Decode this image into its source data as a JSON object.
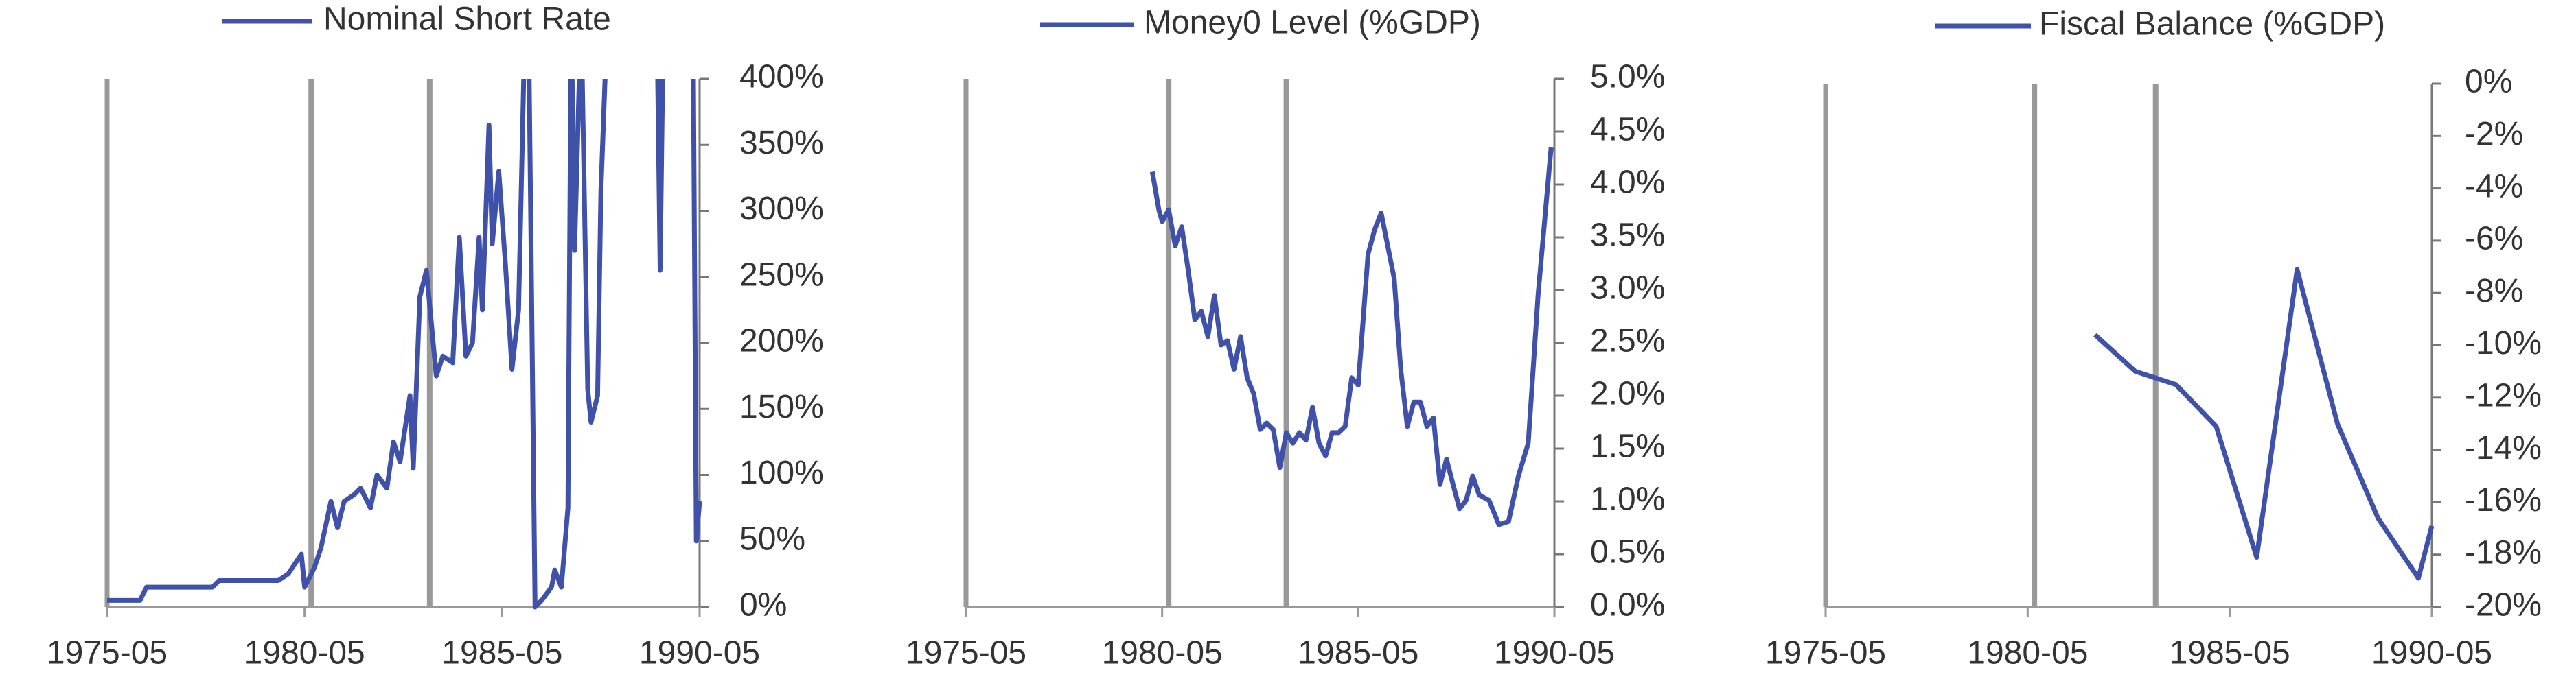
{
  "chart_data": [
    {
      "type": "line",
      "x": [
        "1975-05",
        "1976-03",
        "1976-05",
        "1978-01",
        "1978-03",
        "1979-09",
        "1979-12",
        "1980-04",
        "1980-05",
        "1980-08",
        "1980-10",
        "1981-01",
        "1981-03",
        "1981-05",
        "1981-08",
        "1981-10",
        "1982-01",
        "1982-03",
        "1982-06",
        "1982-08",
        "1982-10",
        "1983-01",
        "1983-02",
        "1983-04",
        "1983-06",
        "1983-09",
        "1983-11",
        "1984-02",
        "1984-04",
        "1984-06",
        "1984-08",
        "1984-10",
        "1984-11",
        "1985-01",
        "1985-02",
        "1985-04",
        "1985-06",
        "1985-08",
        "1985-10",
        "1985-12",
        "1986-01",
        "1986-03",
        "1986-05",
        "1986-08",
        "1986-09",
        "1986-11",
        "1987-01",
        "1987-02",
        "1987-03",
        "1987-05",
        "1987-07",
        "1987-08",
        "1987-10",
        "1987-11",
        "1988-01",
        "1989-04",
        "1989-05",
        "1989-06",
        "1990-03",
        "1990-04",
        "1990-05"
      ],
      "series": [
        {
          "name": "Nominal Short Rate",
          "color": "#3f51a8",
          "values": [
            5,
            5,
            15,
            15,
            20,
            20,
            25,
            40,
            15,
            30,
            45,
            80,
            60,
            80,
            85,
            90,
            75,
            100,
            90,
            125,
            110,
            160,
            105,
            235,
            255,
            175,
            190,
            185,
            280,
            190,
            200,
            280,
            225,
            365,
            275,
            330,
            260,
            180,
            225,
            450,
            450,
            0,
            5,
            15,
            28,
            15,
            75,
            450,
            270,
            450,
            165,
            140,
            160,
            315,
            450,
            450,
            255,
            450,
            450,
            50,
            80
          ]
        }
      ],
      "xlim": [
        "1975-05",
        "1990-05"
      ],
      "xticks": [
        "1975-05",
        "1980-05",
        "1985-05",
        "1990-05"
      ],
      "ylim": [
        0,
        400
      ],
      "yticks": [
        {
          "value": 0,
          "label": "0%"
        },
        {
          "value": 50,
          "label": "50%"
        },
        {
          "value": 100,
          "label": "100%"
        },
        {
          "value": 150,
          "label": "150%"
        },
        {
          "value": 200,
          "label": "200%"
        },
        {
          "value": 250,
          "label": "250%"
        },
        {
          "value": 300,
          "label": "300%"
        },
        {
          "value": 350,
          "label": "350%"
        },
        {
          "value": 400,
          "label": "400%"
        }
      ],
      "vlines": [
        "1980-07",
        "1983-07"
      ]
    },
    {
      "type": "line",
      "x": [
        "1980-02",
        "1980-04",
        "1980-05",
        "1980-07",
        "1980-09",
        "1980-11",
        "1981-01",
        "1981-03",
        "1981-05",
        "1981-07",
        "1981-09",
        "1981-11",
        "1982-01",
        "1982-03",
        "1982-05",
        "1982-07",
        "1982-09",
        "1982-11",
        "1983-01",
        "1983-03",
        "1983-05",
        "1983-07",
        "1983-09",
        "1983-11",
        "1984-01",
        "1984-03",
        "1984-05",
        "1984-07",
        "1984-09",
        "1984-11",
        "1985-01",
        "1985-03",
        "1985-05",
        "1985-08",
        "1985-10",
        "1985-12",
        "1986-02",
        "1986-04",
        "1986-06",
        "1986-08",
        "1986-10",
        "1986-12",
        "1987-02",
        "1987-04",
        "1987-06",
        "1987-08",
        "1987-10",
        "1987-12",
        "1988-02",
        "1988-04",
        "1988-06",
        "1988-09",
        "1988-12",
        "1989-03",
        "1989-06",
        "1989-09",
        "1989-12",
        "1990-04"
      ],
      "series": [
        {
          "name": "Money0 Level (%GDP)",
          "color": "#3f51a8",
          "values": [
            4.12,
            3.76,
            3.65,
            3.76,
            3.42,
            3.6,
            3.18,
            2.72,
            2.8,
            2.56,
            2.95,
            2.48,
            2.52,
            2.25,
            2.56,
            2.17,
            2.02,
            1.68,
            1.74,
            1.68,
            1.32,
            1.65,
            1.55,
            1.65,
            1.58,
            1.89,
            1.55,
            1.43,
            1.65,
            1.65,
            1.71,
            2.17,
            2.1,
            3.34,
            3.57,
            3.73,
            3.42,
            3.11,
            2.25,
            1.71,
            1.94,
            1.94,
            1.71,
            1.79,
            1.16,
            1.4,
            1.16,
            0.93,
            1.01,
            1.24,
            1.06,
            1.01,
            0.78,
            0.81,
            1.24,
            1.55,
            2.95,
            4.35
          ]
        }
      ],
      "xlim": [
        "1975-05",
        "1990-05"
      ],
      "xticks": [
        "1975-05",
        "1980-05",
        "1985-05",
        "1990-05"
      ],
      "ylim": [
        0,
        5
      ],
      "yticks": [
        {
          "value": 0,
          "label": "0.0%"
        },
        {
          "value": 0.5,
          "label": "0.5%"
        },
        {
          "value": 1,
          "label": "1.0%"
        },
        {
          "value": 1.5,
          "label": "1.5%"
        },
        {
          "value": 2,
          "label": "2.0%"
        },
        {
          "value": 2.5,
          "label": "2.5%"
        },
        {
          "value": 3,
          "label": "3.0%"
        },
        {
          "value": 3.5,
          "label": "3.5%"
        },
        {
          "value": 4,
          "label": "4.0%"
        },
        {
          "value": 4.5,
          "label": "4.5%"
        },
        {
          "value": 5,
          "label": "5.0%"
        }
      ],
      "vlines": [
        "1980-07",
        "1983-07"
      ]
    },
    {
      "type": "line",
      "x": [
        "1982-01",
        "1983-01",
        "1984-01",
        "1985-01",
        "1986-01",
        "1987-01",
        "1988-01",
        "1989-01",
        "1990-01",
        "1990-05"
      ],
      "series": [
        {
          "name": "Fiscal Balance (%GDP)",
          "color": "#3f51a8",
          "values": [
            -9.6,
            -11.0,
            -11.5,
            -13.1,
            -18.1,
            -7.1,
            -13.0,
            -16.6,
            -18.9,
            -16.9
          ]
        }
      ],
      "xlim": [
        "1975-05",
        "1990-05"
      ],
      "xticks": [
        "1975-05",
        "1980-05",
        "1985-05",
        "1990-05"
      ],
      "ylim": [
        -20,
        0
      ],
      "yticks": [
        {
          "value": 0,
          "label": "0%"
        },
        {
          "value": -2,
          "label": "-2%"
        },
        {
          "value": -4,
          "label": "-4%"
        },
        {
          "value": -6,
          "label": "-6%"
        },
        {
          "value": -8,
          "label": "-8%"
        },
        {
          "value": -10,
          "label": "-10%"
        },
        {
          "value": -12,
          "label": "-12%"
        },
        {
          "value": -14,
          "label": "-14%"
        },
        {
          "value": -16,
          "label": "-16%"
        },
        {
          "value": -18,
          "label": "-18%"
        },
        {
          "value": -20,
          "label": "-20%"
        }
      ],
      "vlines": [
        "1980-07",
        "1983-07"
      ]
    }
  ]
}
